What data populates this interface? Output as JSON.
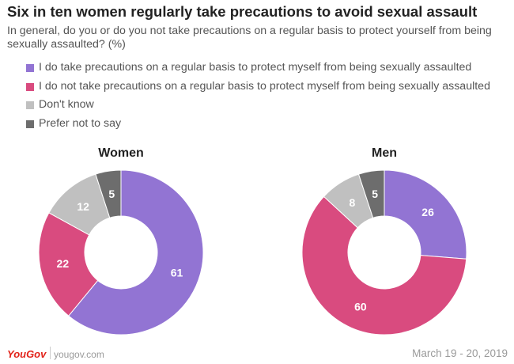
{
  "chart_data": {
    "type": "pie",
    "title": "Six in ten women regularly take precautions to avoid sexual assault",
    "subtitle": "In general, do you or do you not take precautions on a regular basis to protect yourself from being sexually assaulted? (%)",
    "legend": [
      {
        "label": "I do take precautions on a regular basis to protect myself from being sexually assaulted",
        "color": "#9274d3"
      },
      {
        "label": "I do not take precautions on a regular basis to protect myself from being sexually assaulted",
        "color": "#d94b7f"
      },
      {
        "label": "Don't know",
        "color": "#c0c0c0"
      },
      {
        "label": "Prefer not to say",
        "color": "#6d6d6d"
      }
    ],
    "charts": [
      {
        "name": "Women",
        "values": [
          61,
          22,
          12,
          5
        ],
        "label_values": [
          61,
          22,
          12,
          5
        ]
      },
      {
        "name": "Men",
        "values": [
          26,
          60,
          8,
          5
        ],
        "label_values": [
          26,
          60,
          8,
          5
        ]
      }
    ]
  },
  "footer": {
    "brand": "YouGov",
    "site": "yougov.com",
    "date": "March 19 - 20, 2019"
  }
}
